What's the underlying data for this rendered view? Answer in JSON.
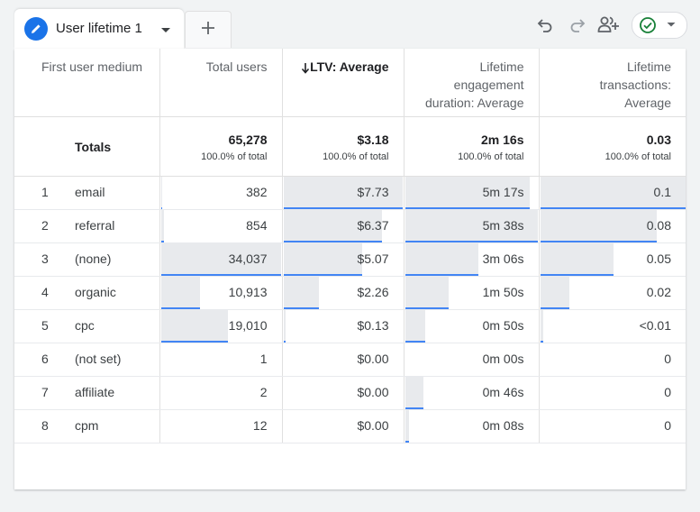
{
  "tab": {
    "label": "User lifetime 1",
    "edit_icon": "pencil-icon",
    "caret_icon": "caret-down-icon",
    "add_icon": "plus-icon"
  },
  "toolbar": {
    "icons": [
      "undo-icon",
      "redo-icon",
      "share-users-icon",
      "check-circle-icon",
      "caret-down-icon"
    ]
  },
  "colors": {
    "accent": "#1a73e8",
    "bar_line": "#4285f4",
    "bar_fill": "#e8eaed",
    "status_ok": "#188038"
  },
  "table": {
    "headers": {
      "dimension": "First user medium",
      "total_users": "Total users",
      "ltv": "LTV: Average",
      "ltv_sort_icon": "arrow-down-icon",
      "engagement": [
        "Lifetime",
        "engagement",
        "duration: Average"
      ],
      "transactions": [
        "Lifetime",
        "transactions:",
        "Average"
      ]
    },
    "totals": {
      "label": "Totals",
      "total_users": "65,278",
      "total_users_pct": "100.0% of total",
      "ltv": "$3.18",
      "ltv_pct": "100.0% of total",
      "engagement": "2m 16s",
      "engagement_pct": "100.0% of total",
      "transactions": "0.03",
      "transactions_pct": "100.0% of total"
    },
    "rows": [
      {
        "rank": "1",
        "medium": "email",
        "users": "382",
        "users_frac": 0.011,
        "ltv": "$7.73",
        "ltv_frac": 1.0,
        "eng": "5m 17s",
        "eng_frac": 0.94,
        "tx": "0.1",
        "tx_frac": 1.0
      },
      {
        "rank": "2",
        "medium": "referral",
        "users": "854",
        "users_frac": 0.025,
        "ltv": "$6.37",
        "ltv_frac": 0.824,
        "eng": "5m 38s",
        "eng_frac": 1.0,
        "tx": "0.08",
        "tx_frac": 0.8
      },
      {
        "rank": "3",
        "medium": "(none)",
        "users": "34,037",
        "users_frac": 1.0,
        "ltv": "$5.07",
        "ltv_frac": 0.656,
        "eng": "3m 06s",
        "eng_frac": 0.55,
        "tx": "0.05",
        "tx_frac": 0.5
      },
      {
        "rank": "4",
        "medium": "organic",
        "users": "10,913",
        "users_frac": 0.321,
        "ltv": "$2.26",
        "ltv_frac": 0.292,
        "eng": "1m 50s",
        "eng_frac": 0.326,
        "tx": "0.02",
        "tx_frac": 0.2
      },
      {
        "rank": "5",
        "medium": "cpc",
        "users": "19,010",
        "users_frac": 0.559,
        "ltv": "$0.13",
        "ltv_frac": 0.017,
        "eng": "0m 50s",
        "eng_frac": 0.148,
        "tx": "<0.01",
        "tx_frac": 0.02
      },
      {
        "rank": "6",
        "medium": "(not set)",
        "users": "1",
        "users_frac": 0.0,
        "ltv": "$0.00",
        "ltv_frac": 0.0,
        "eng": "0m 00s",
        "eng_frac": 0.0,
        "tx": "0",
        "tx_frac": 0.0
      },
      {
        "rank": "7",
        "medium": "affiliate",
        "users": "2",
        "users_frac": 0.0,
        "ltv": "$0.00",
        "ltv_frac": 0.0,
        "eng": "0m 46s",
        "eng_frac": 0.136,
        "tx": "0",
        "tx_frac": 0.0
      },
      {
        "rank": "8",
        "medium": "cpm",
        "users": "12",
        "users_frac": 0.0,
        "ltv": "$0.00",
        "ltv_frac": 0.0,
        "eng": "0m 08s",
        "eng_frac": 0.024,
        "tx": "0",
        "tx_frac": 0.0
      }
    ]
  }
}
